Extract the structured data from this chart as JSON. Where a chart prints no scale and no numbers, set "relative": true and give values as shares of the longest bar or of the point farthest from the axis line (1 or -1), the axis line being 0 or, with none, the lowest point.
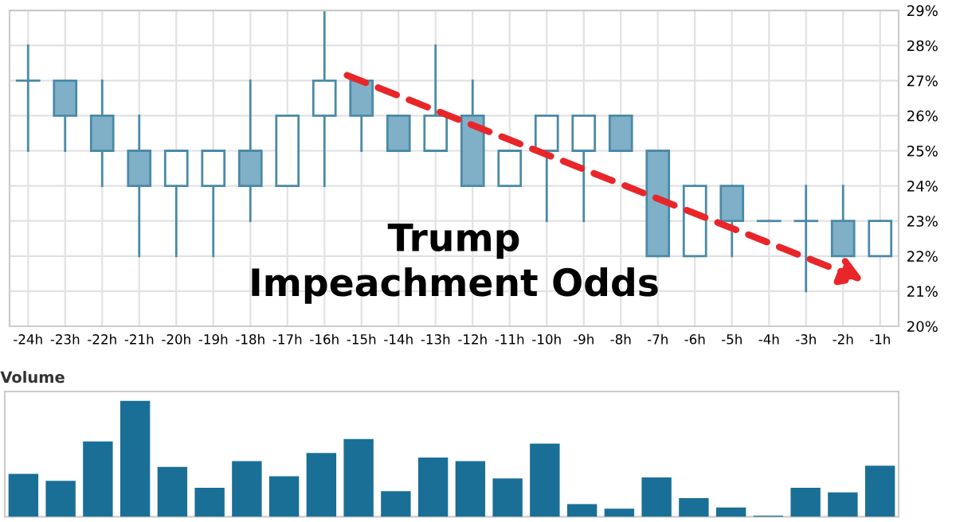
{
  "chart_data": [
    {
      "type": "candlestick",
      "annotations": [
        "Trump\nImpeachment Odds"
      ],
      "categories": [
        "-24h",
        "-23h",
        "-22h",
        "-21h",
        "-20h",
        "-19h",
        "-18h",
        "-17h",
        "-16h",
        "-15h",
        "-14h",
        "-13h",
        "-12h",
        "-11h",
        "-10h",
        "-9h",
        "-8h",
        "-7h",
        "-6h",
        "-5h",
        "-4h",
        "-3h",
        "-2h",
        "-1h"
      ],
      "ohlc": [
        [
          27,
          28,
          25,
          27
        ],
        [
          27,
          27,
          25,
          26
        ],
        [
          26,
          27,
          24,
          25
        ],
        [
          25,
          26,
          22,
          24
        ],
        [
          24,
          25,
          22,
          25
        ],
        [
          24,
          25,
          22,
          25
        ],
        [
          25,
          27,
          23,
          24
        ],
        [
          24,
          26,
          24,
          26
        ],
        [
          26,
          29,
          24,
          27
        ],
        [
          27,
          27,
          25,
          26
        ],
        [
          26,
          26,
          25,
          25
        ],
        [
          25,
          28,
          25,
          26
        ],
        [
          26,
          27,
          24,
          24
        ],
        [
          24,
          25,
          24,
          25
        ],
        [
          25,
          26,
          23,
          26
        ],
        [
          25,
          26,
          23,
          26
        ],
        [
          26,
          26,
          25,
          25
        ],
        [
          25,
          25,
          22,
          22
        ],
        [
          22,
          24,
          22,
          24
        ],
        [
          24,
          24,
          22,
          23
        ],
        [
          23,
          23,
          23,
          23
        ],
        [
          23,
          24,
          21,
          23
        ],
        [
          23,
          24,
          22,
          22
        ],
        [
          22,
          23,
          22,
          23
        ]
      ],
      "colors": [
        "#4a8aa8",
        "#7fb0c8",
        "#7fb0c8",
        "#7fb0c8",
        "#ffffff",
        "#ffffff",
        "#7fb0c8",
        "#ffffff",
        "#ffffff",
        "#7fb0c8",
        "#7fb0c8",
        "#ffffff",
        "#7fb0c8",
        "#ffffff",
        "#ffffff",
        "#ffffff",
        "#7fb0c8",
        "#7fb0c8",
        "#ffffff",
        "#7fb0c8",
        "#4a8aa8",
        "#4a8aa8",
        "#7fb0c8",
        "#ffffff"
      ],
      "ylim": [
        20,
        29
      ],
      "yticks": [
        {
          "value": 20,
          "label": "20%"
        },
        {
          "value": 21,
          "label": "21%"
        },
        {
          "value": 22,
          "label": "22%"
        },
        {
          "value": 23,
          "label": "23%"
        },
        {
          "value": 24,
          "label": "24%"
        },
        {
          "value": 25,
          "label": "25%"
        },
        {
          "value": 26,
          "label": "26%"
        },
        {
          "value": 27,
          "label": "27%"
        },
        {
          "value": 28,
          "label": "28%"
        },
        {
          "value": 29,
          "label": "29%"
        }
      ],
      "grid": true
    },
    {
      "type": "bar",
      "title": "Volume",
      "relative": true,
      "color": "#1a6f96",
      "categories": [
        null,
        null,
        null,
        null,
        null,
        null,
        null,
        null,
        null,
        null,
        null,
        null,
        null,
        null,
        null,
        null,
        null,
        null,
        null,
        null,
        null,
        null,
        null,
        null
      ],
      "values": [
        0.37,
        0.31,
        0.65,
        1,
        0.43,
        0.25,
        0.48,
        0.35,
        0.55,
        0.67,
        0.22,
        0.51,
        0.48,
        0.33,
        0.63,
        0.11,
        0.07,
        0.34,
        0.16,
        0.08,
        0.01,
        0.25,
        0.21,
        0.44
      ]
    }
  ]
}
